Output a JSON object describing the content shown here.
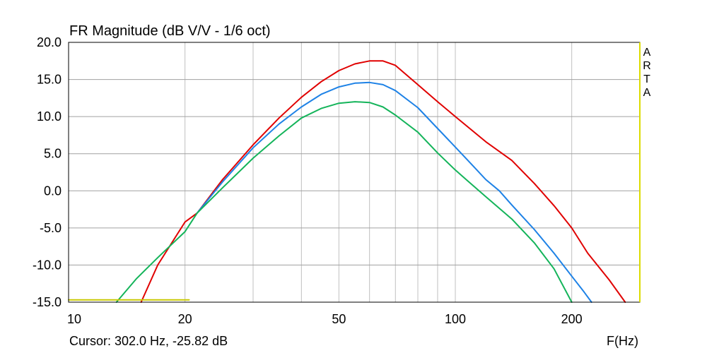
{
  "chart_data": {
    "type": "line",
    "title": "FR Magnitude (dB V/V - 1/6 oct)",
    "x_scale": "log",
    "xlim": [
      10,
      300
    ],
    "ylim": [
      -15,
      20
    ],
    "x_ticks": [
      10,
      20,
      50,
      100,
      200
    ],
    "x_tick_labels": [
      "10",
      "20",
      "50",
      "100",
      "200"
    ],
    "x_grid": [
      10,
      20,
      30,
      40,
      50,
      60,
      70,
      80,
      90,
      100,
      200,
      300
    ],
    "y_ticks": [
      20,
      15,
      10,
      5,
      0,
      -5,
      -10,
      -15
    ],
    "y_tick_labels": [
      "20.0",
      "15.0",
      "10.0",
      "5.0",
      "0.0",
      "-5.0",
      "-10.0",
      "-15.0"
    ],
    "grid": true,
    "xunit": "F(Hz)",
    "cursor_text": "Cursor: 302.0 Hz, -25.82 dB",
    "watermark": [
      "A",
      "R",
      "T",
      "A"
    ],
    "colors": {
      "red": "#e00000",
      "blue": "#1e82e6",
      "green": "#14b45a",
      "yellow": "#c8c800",
      "grid": "#c0c0c0",
      "frame": "#000000",
      "right_edge": "#dcdc00"
    },
    "series": [
      {
        "color": "#e00000",
        "points": [
          [
            15.4,
            -15.0
          ],
          [
            17,
            -10.0
          ],
          [
            20,
            -4.2
          ],
          [
            21.5,
            -3.0
          ],
          [
            25,
            1.5
          ],
          [
            30,
            6.2
          ],
          [
            35,
            9.8
          ],
          [
            40,
            12.6
          ],
          [
            45,
            14.7
          ],
          [
            50,
            16.2
          ],
          [
            55,
            17.1
          ],
          [
            60,
            17.5
          ],
          [
            65,
            17.5
          ],
          [
            70,
            16.9
          ],
          [
            80,
            14.3
          ],
          [
            90,
            12.0
          ],
          [
            100,
            10.0
          ],
          [
            120,
            6.6
          ],
          [
            140,
            4.1
          ],
          [
            160,
            1.0
          ],
          [
            180,
            -2.0
          ],
          [
            200,
            -5.0
          ],
          [
            220,
            -8.4
          ],
          [
            250,
            -12.0
          ],
          [
            275,
            -15.0
          ]
        ]
      },
      {
        "color": "#1e82e6",
        "points": [
          [
            21.5,
            -3.0
          ],
          [
            25,
            1.2
          ],
          [
            30,
            5.8
          ],
          [
            35,
            9.0
          ],
          [
            40,
            11.3
          ],
          [
            45,
            13.0
          ],
          [
            50,
            14.0
          ],
          [
            55,
            14.5
          ],
          [
            60,
            14.6
          ],
          [
            65,
            14.3
          ],
          [
            70,
            13.5
          ],
          [
            80,
            11.2
          ],
          [
            90,
            8.4
          ],
          [
            100,
            5.9
          ],
          [
            110,
            3.6
          ],
          [
            120,
            1.5
          ],
          [
            130,
            0.0
          ],
          [
            140,
            -1.9
          ],
          [
            160,
            -5.2
          ],
          [
            180,
            -8.4
          ],
          [
            200,
            -11.5
          ],
          [
            215,
            -13.6
          ],
          [
            225,
            -15.0
          ]
        ]
      },
      {
        "color": "#14b45a",
        "points": [
          [
            13.3,
            -15.0
          ],
          [
            15,
            -11.8
          ],
          [
            17,
            -9.0
          ],
          [
            20,
            -5.5
          ],
          [
            21.5,
            -3.0
          ],
          [
            25,
            0.4
          ],
          [
            30,
            4.4
          ],
          [
            35,
            7.4
          ],
          [
            40,
            9.8
          ],
          [
            45,
            11.1
          ],
          [
            50,
            11.8
          ],
          [
            55,
            12.0
          ],
          [
            60,
            11.9
          ],
          [
            65,
            11.3
          ],
          [
            70,
            10.2
          ],
          [
            80,
            7.9
          ],
          [
            90,
            5.1
          ],
          [
            100,
            2.8
          ],
          [
            110,
            0.9
          ],
          [
            120,
            -0.8
          ],
          [
            140,
            -3.8
          ],
          [
            160,
            -7.0
          ],
          [
            180,
            -10.5
          ],
          [
            200,
            -15.0
          ]
        ]
      },
      {
        "color": "#c8c800",
        "points": [
          [
            10,
            -14.7
          ],
          [
            20.5,
            -14.7
          ]
        ]
      }
    ]
  }
}
